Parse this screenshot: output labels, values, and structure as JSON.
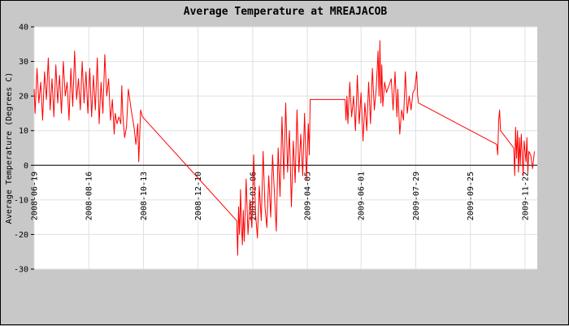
{
  "chart_data": {
    "type": "line",
    "title": "Average Temperature at MREAJACOB",
    "xlabel": "",
    "ylabel": "Average Temperature (Degrees C)",
    "ylim": [
      -30,
      40
    ],
    "yticks": [
      -30,
      -20,
      -10,
      0,
      10,
      20,
      30,
      40
    ],
    "xlim": [
      "2008-06-19",
      "2009-12-05"
    ],
    "xticks": [
      "2008-06-19",
      "2008-08-16",
      "2008-10-13",
      "2008-12-10",
      "2009-02-06",
      "2009-04-05",
      "2009-06-01",
      "2009-07-29",
      "2009-09-25",
      "2009-11-22"
    ],
    "grid": true,
    "line_color": "#ff0000",
    "zero_line": true,
    "series": [
      {
        "name": "",
        "color": "#ff0000",
        "points": [
          [
            "2008-06-19",
            22
          ],
          [
            "2008-06-20",
            15
          ],
          [
            "2008-06-22",
            28
          ],
          [
            "2008-06-24",
            18
          ],
          [
            "2008-06-26",
            24
          ],
          [
            "2008-06-28",
            13
          ],
          [
            "2008-06-30",
            27
          ],
          [
            "2008-07-02",
            19
          ],
          [
            "2008-07-04",
            31
          ],
          [
            "2008-07-06",
            16
          ],
          [
            "2008-07-08",
            25
          ],
          [
            "2008-07-10",
            14
          ],
          [
            "2008-07-12",
            29
          ],
          [
            "2008-07-14",
            18
          ],
          [
            "2008-07-16",
            26
          ],
          [
            "2008-07-18",
            15
          ],
          [
            "2008-07-20",
            30
          ],
          [
            "2008-07-22",
            20
          ],
          [
            "2008-07-24",
            24
          ],
          [
            "2008-07-26",
            13
          ],
          [
            "2008-07-28",
            28
          ],
          [
            "2008-07-30",
            17
          ],
          [
            "2008-08-01",
            33
          ],
          [
            "2008-08-03",
            19
          ],
          [
            "2008-08-05",
            25
          ],
          [
            "2008-08-07",
            16
          ],
          [
            "2008-08-09",
            30
          ],
          [
            "2008-08-11",
            18
          ],
          [
            "2008-08-13",
            27
          ],
          [
            "2008-08-15",
            15
          ],
          [
            "2008-08-17",
            28
          ],
          [
            "2008-08-19",
            14
          ],
          [
            "2008-08-21",
            26
          ],
          [
            "2008-08-23",
            16
          ],
          [
            "2008-08-25",
            31
          ],
          [
            "2008-08-27",
            12
          ],
          [
            "2008-08-29",
            24
          ],
          [
            "2008-08-31",
            15
          ],
          [
            "2008-09-02",
            32
          ],
          [
            "2008-09-04",
            20
          ],
          [
            "2008-09-06",
            25
          ],
          [
            "2008-09-08",
            13
          ],
          [
            "2008-09-10",
            19
          ],
          [
            "2008-09-12",
            9
          ],
          [
            "2008-09-13",
            15
          ],
          [
            "2008-09-15",
            12
          ],
          [
            "2008-09-17",
            14
          ],
          [
            "2008-09-19",
            12
          ],
          [
            "2008-09-20",
            23
          ],
          [
            "2008-09-21",
            15
          ],
          [
            "2008-09-23",
            8
          ],
          [
            "2008-09-25",
            11
          ],
          [
            "2008-09-27",
            22
          ],
          [
            "2008-09-30",
            16
          ],
          [
            "2008-10-03",
            11
          ],
          [
            "2008-10-05",
            6
          ],
          [
            "2008-10-07",
            12
          ],
          [
            "2008-10-08",
            1
          ],
          [
            "2008-10-10",
            16
          ],
          [
            "2008-10-12",
            14
          ],
          [
            "2009-01-20",
            -16
          ],
          [
            "2009-01-21",
            -26
          ],
          [
            "2009-01-22",
            -12
          ],
          [
            "2009-01-23",
            -20
          ],
          [
            "2009-01-24",
            -7
          ],
          [
            "2009-01-25",
            -17
          ],
          [
            "2009-01-26",
            -23
          ],
          [
            "2009-01-27",
            -13
          ],
          [
            "2009-01-28",
            -22
          ],
          [
            "2009-01-30",
            -4
          ],
          [
            "2009-02-01",
            -20
          ],
          [
            "2009-02-03",
            -10
          ],
          [
            "2009-02-05",
            -18
          ],
          [
            "2009-02-07",
            3
          ],
          [
            "2009-02-09",
            -14
          ],
          [
            "2009-02-11",
            -21
          ],
          [
            "2009-02-13",
            -6
          ],
          [
            "2009-02-15",
            -16
          ],
          [
            "2009-02-17",
            4
          ],
          [
            "2009-02-19",
            -12
          ],
          [
            "2009-02-21",
            -18
          ],
          [
            "2009-02-23",
            -3
          ],
          [
            "2009-02-25",
            -15
          ],
          [
            "2009-02-27",
            3
          ],
          [
            "2009-03-01",
            -8
          ],
          [
            "2009-03-03",
            -19
          ],
          [
            "2009-03-05",
            5
          ],
          [
            "2009-03-07",
            -9
          ],
          [
            "2009-03-09",
            14
          ],
          [
            "2009-03-11",
            -4
          ],
          [
            "2009-03-13",
            18
          ],
          [
            "2009-03-15",
            -2
          ],
          [
            "2009-03-17",
            10
          ],
          [
            "2009-03-19",
            -12
          ],
          [
            "2009-03-21",
            7
          ],
          [
            "2009-03-23",
            -5
          ],
          [
            "2009-03-25",
            16
          ],
          [
            "2009-03-27",
            -2
          ],
          [
            "2009-03-29",
            9
          ],
          [
            "2009-03-31",
            -3
          ],
          [
            "2009-04-02",
            15
          ],
          [
            "2009-04-04",
            -4
          ],
          [
            "2009-04-06",
            12
          ],
          [
            "2009-04-07",
            3
          ],
          [
            "2009-04-08",
            19
          ],
          [
            "2009-05-15",
            19
          ],
          [
            "2009-05-16",
            13
          ],
          [
            "2009-05-17",
            20
          ],
          [
            "2009-05-18",
            12
          ],
          [
            "2009-05-20",
            24
          ],
          [
            "2009-05-22",
            14
          ],
          [
            "2009-05-24",
            20
          ],
          [
            "2009-05-26",
            10
          ],
          [
            "2009-05-28",
            26
          ],
          [
            "2009-05-30",
            12
          ],
          [
            "2009-06-01",
            21
          ],
          [
            "2009-06-03",
            7
          ],
          [
            "2009-06-05",
            18
          ],
          [
            "2009-06-07",
            10
          ],
          [
            "2009-06-09",
            24
          ],
          [
            "2009-06-11",
            12
          ],
          [
            "2009-06-13",
            28
          ],
          [
            "2009-06-15",
            16
          ],
          [
            "2009-06-17",
            22
          ],
          [
            "2009-06-19",
            33
          ],
          [
            "2009-06-20",
            20
          ],
          [
            "2009-06-21",
            36
          ],
          [
            "2009-06-22",
            18
          ],
          [
            "2009-06-23",
            29
          ],
          [
            "2009-06-24",
            17
          ],
          [
            "2009-06-26",
            24
          ],
          [
            "2009-06-28",
            21
          ],
          [
            "2009-07-03",
            25
          ],
          [
            "2009-07-05",
            16
          ],
          [
            "2009-07-07",
            27
          ],
          [
            "2009-07-09",
            14
          ],
          [
            "2009-07-10",
            22
          ],
          [
            "2009-07-12",
            9
          ],
          [
            "2009-07-14",
            16
          ],
          [
            "2009-07-16",
            13
          ],
          [
            "2009-07-18",
            27
          ],
          [
            "2009-07-20",
            15
          ],
          [
            "2009-07-22",
            20
          ],
          [
            "2009-07-24",
            16
          ],
          [
            "2009-07-26",
            21
          ],
          [
            "2009-07-28",
            22
          ],
          [
            "2009-07-30",
            27
          ],
          [
            "2009-07-31",
            20
          ],
          [
            "2009-08-01",
            18
          ],
          [
            "2009-10-23",
            6
          ],
          [
            "2009-10-24",
            3
          ],
          [
            "2009-10-25",
            13
          ],
          [
            "2009-10-26",
            16
          ],
          [
            "2009-10-27",
            10
          ],
          [
            "2009-11-10",
            5
          ],
          [
            "2009-11-11",
            -3
          ],
          [
            "2009-11-12",
            11
          ],
          [
            "2009-11-13",
            2
          ],
          [
            "2009-11-14",
            10
          ],
          [
            "2009-11-15",
            -2
          ],
          [
            "2009-11-16",
            8
          ],
          [
            "2009-11-17",
            0
          ],
          [
            "2009-11-18",
            9
          ],
          [
            "2009-11-19",
            3
          ],
          [
            "2009-11-20",
            -3
          ],
          [
            "2009-11-21",
            7
          ],
          [
            "2009-11-23",
            1
          ],
          [
            "2009-11-24",
            8
          ],
          [
            "2009-11-25",
            -2
          ],
          [
            "2009-11-26",
            4
          ],
          [
            "2009-11-28",
            3
          ],
          [
            "2009-11-30",
            -1
          ],
          [
            "2009-12-02",
            4
          ]
        ]
      }
    ]
  }
}
